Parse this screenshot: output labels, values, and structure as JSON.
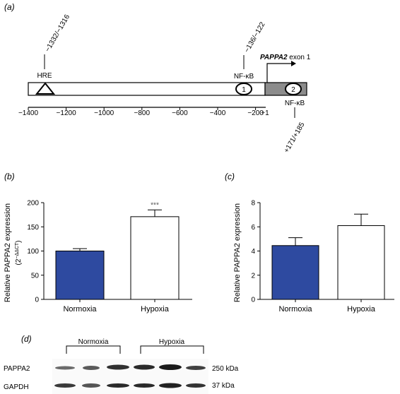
{
  "panel_a": {
    "label": "(a)",
    "hre_label": "HRE",
    "hre_site": "−1332/−1316",
    "nfkb1_site": "−136/−122",
    "nfkb1_label": "NF-κB",
    "nfkb2_label": "NF-κB",
    "nfkb2_site": "+171/+185",
    "gene_label_italic": "PAPPA2",
    "gene_label_rest": " exon 1",
    "site1_number": "1",
    "site2_number": "2",
    "plus_one": "+1",
    "ticks": [
      "−1400",
      "−1200",
      "−1000",
      "−800",
      "−600",
      "−400",
      "−200"
    ]
  },
  "chart_data": [
    {
      "panel": "(b)",
      "type": "bar",
      "categories": [
        "Normoxia",
        "Hypoxia"
      ],
      "values": [
        100,
        171
      ],
      "errors": [
        5,
        14
      ],
      "colors": [
        "#2e4aa0",
        "#ffffff"
      ],
      "ylabel": "Relative PAPPA2 expression",
      "ylabel_sub": "(2",
      "ylabel_sup": "−ΔΔCT",
      "ylabel_sub_end": ")",
      "ylim": [
        0,
        200
      ],
      "yticks": [
        0,
        50,
        100,
        150,
        200
      ],
      "annotations": [
        {
          "category": "Hypoxia",
          "text": "***"
        }
      ]
    },
    {
      "panel": "(c)",
      "type": "bar",
      "categories": [
        "Normoxia",
        "Hypoxia"
      ],
      "values": [
        4.45,
        6.1
      ],
      "errors": [
        0.65,
        0.95
      ],
      "colors": [
        "#2e4aa0",
        "#ffffff"
      ],
      "ylabel": "Relative PAPPA2 expression",
      "ylim": [
        0,
        8
      ],
      "yticks": [
        0,
        2,
        4,
        6,
        8
      ]
    }
  ],
  "panel_d": {
    "label": "(d)",
    "group1": "Normoxia",
    "group2": "Hypoxia",
    "row1_label": "PAPPA2",
    "row2_label": "GAPDH",
    "row1_size": "250 kDa",
    "row2_size": "37 kDa"
  }
}
